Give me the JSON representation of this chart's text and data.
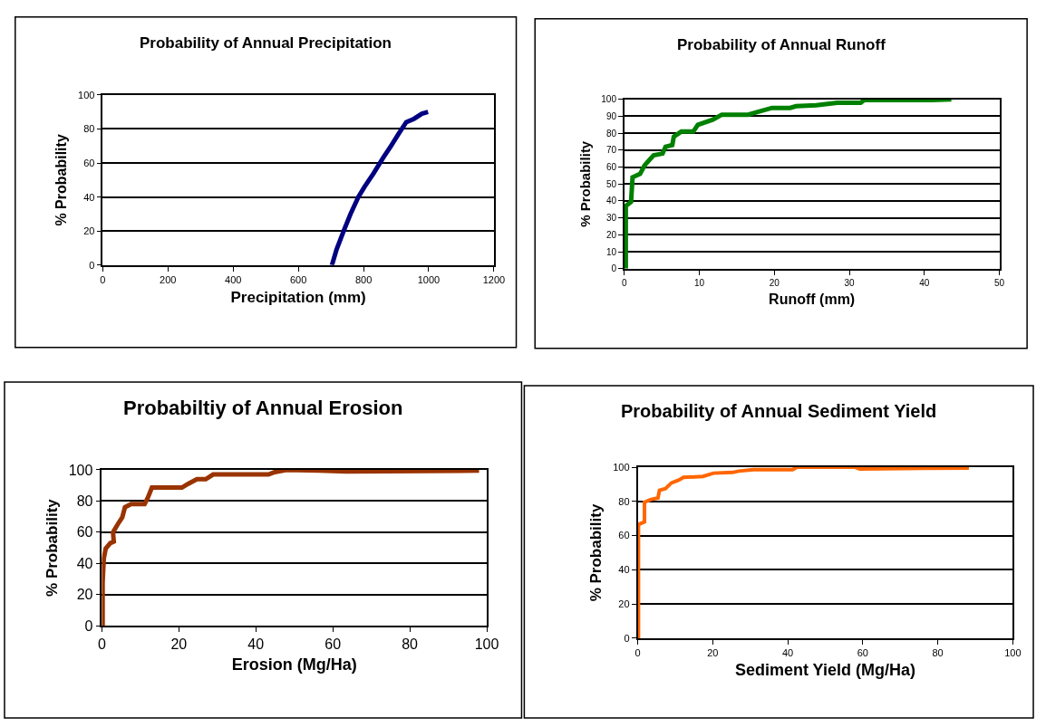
{
  "chart_data": [
    {
      "type": "line",
      "title": "Probability of Annual Precipitation",
      "xlabel": "Precipitation (mm)",
      "ylabel": "% Probability",
      "xlim": [
        0,
        1200
      ],
      "xticks": [
        0,
        200,
        400,
        600,
        800,
        1000,
        1200
      ],
      "ylim": [
        0,
        100
      ],
      "yticks": [
        0,
        20,
        40,
        60,
        80,
        100
      ],
      "grid": "y",
      "marker": "none",
      "line_style": "solid",
      "series": [
        {
          "color": "#000080",
          "x": [
            703,
            717,
            741,
            760,
            784,
            803,
            831,
            860,
            884,
            907,
            931,
            955,
            979,
            998
          ],
          "values": [
            0,
            9,
            21,
            30,
            40,
            46,
            54,
            63,
            70,
            77,
            84,
            86,
            89,
            90
          ]
        }
      ]
    },
    {
      "type": "line",
      "title": "Probability of Annual Runoff",
      "xlabel": "Runoff (mm)",
      "ylabel": "% Probability",
      "xlim": [
        0,
        50
      ],
      "xticks": [
        0,
        10,
        20,
        30,
        40,
        50
      ],
      "ylim": [
        0,
        100
      ],
      "yticks": [
        0,
        10,
        20,
        30,
        40,
        50,
        60,
        70,
        80,
        90,
        100
      ],
      "grid": "y",
      "marker": "none",
      "line_style": "solid",
      "series": [
        {
          "color": "#008000",
          "x": [
            0.2,
            0.2,
            0.9,
            1.1,
            2.1,
            2.7,
            3.9,
            5.1,
            5.5,
            6.4,
            6.6,
            7.6,
            9.2,
            9.8,
            11.8,
            13,
            16.5,
            18.1,
            19.7,
            22.1,
            22.9,
            25.6,
            28.4,
            31.5,
            32,
            41,
            43.6
          ],
          "values": [
            0,
            37,
            39.5,
            54,
            56,
            61,
            67,
            68,
            72,
            73,
            78,
            81,
            81,
            85,
            88,
            91,
            91,
            93,
            95,
            95,
            96,
            96.5,
            98,
            98,
            99.6,
            99.6,
            100
          ]
        }
      ]
    },
    {
      "type": "line",
      "title": "Probabiltiy of Annual Erosion",
      "xlabel": "Erosion (Mg/Ha)",
      "ylabel": "% Probability",
      "xlim": [
        0,
        100
      ],
      "xticks": [
        0,
        20,
        40,
        60,
        80,
        100
      ],
      "ylim": [
        0,
        100
      ],
      "yticks": [
        0,
        20,
        40,
        60,
        80,
        100
      ],
      "grid": "y",
      "marker": "none",
      "line_style": "solid",
      "series": [
        {
          "color": "#993300",
          "x": [
            0.2,
            0.2,
            0.5,
            1,
            2.2,
            3.1,
            2.9,
            4.1,
            5.3,
            6,
            7.6,
            11.1,
            11.9,
            13,
            20.8,
            22.4,
            24.7,
            27,
            28.9,
            43.3,
            44.9,
            48,
            56.5,
            63.5,
            98
          ],
          "values": [
            0,
            27.6,
            43,
            49.5,
            53,
            54,
            60,
            65,
            69.5,
            76,
            78,
            78,
            81.9,
            88.6,
            88.6,
            91,
            94,
            94,
            97,
            97,
            98.5,
            100,
            99.6,
            99,
            99.5
          ]
        }
      ]
    },
    {
      "type": "line",
      "title": "Probability of Annual Sediment Yield",
      "xlabel": "Sediment Yield (Mg/Ha)",
      "ylabel": "% Probability",
      "xlim": [
        0,
        100
      ],
      "xticks": [
        0,
        20,
        40,
        60,
        80,
        100
      ],
      "ylim": [
        0,
        100
      ],
      "yticks": [
        0,
        20,
        40,
        60,
        80,
        100
      ],
      "grid": "y",
      "marker": "none",
      "line_style": "solid",
      "series": [
        {
          "color": "#ff6600",
          "x": [
            0.2,
            0.2,
            0.2,
            1.8,
            1.8,
            1.8,
            3.4,
            5.4,
            5.8,
            7.4,
            9,
            11,
            12.2,
            17.4,
            20.2,
            25.3,
            26.9,
            30.9,
            41.3,
            42.5,
            58,
            59.2,
            88.3
          ],
          "values": [
            0,
            58.7,
            66.5,
            68,
            73.4,
            79.5,
            81,
            82,
            86.5,
            87.5,
            90.8,
            92.5,
            94,
            94.6,
            96.5,
            96.9,
            97.7,
            98.6,
            98.6,
            100,
            100,
            99,
            99.5
          ]
        }
      ]
    }
  ]
}
